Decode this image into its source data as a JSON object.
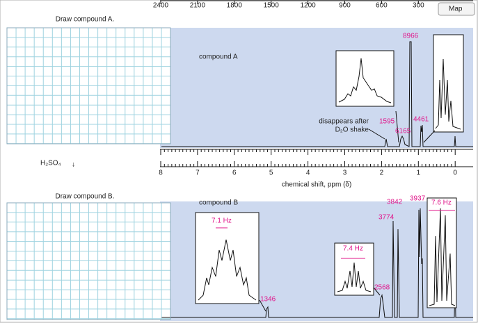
{
  "header": {
    "map_button": "Map"
  },
  "top_axis": {
    "labels": [
      "2400",
      "2100",
      "1800",
      "1500",
      "1200",
      "900",
      "600",
      "300"
    ]
  },
  "panel_a": {
    "prompt": "Draw compound A.",
    "spectrum_label": "compound A",
    "peak_labels": [
      "8966",
      "1595",
      "4461",
      "6165"
    ],
    "note": [
      "disappears after",
      "D₂O shake"
    ]
  },
  "reaction": {
    "reagent": "H₂SO₄",
    "arrow": "↓"
  },
  "ppm_axis": {
    "labels": [
      "8",
      "7",
      "6",
      "5",
      "4",
      "3",
      "2",
      "1",
      "0"
    ],
    "title": "chemical shift, ppm (δ)"
  },
  "panel_b": {
    "prompt": "Draw compound B.",
    "spectrum_label": "compound B",
    "peak_labels": [
      "3842",
      "3937",
      "3774",
      "2568",
      "1346"
    ],
    "couplings": [
      "7.6 Hz",
      "7.1 Hz",
      "7.4 Hz"
    ]
  }
}
